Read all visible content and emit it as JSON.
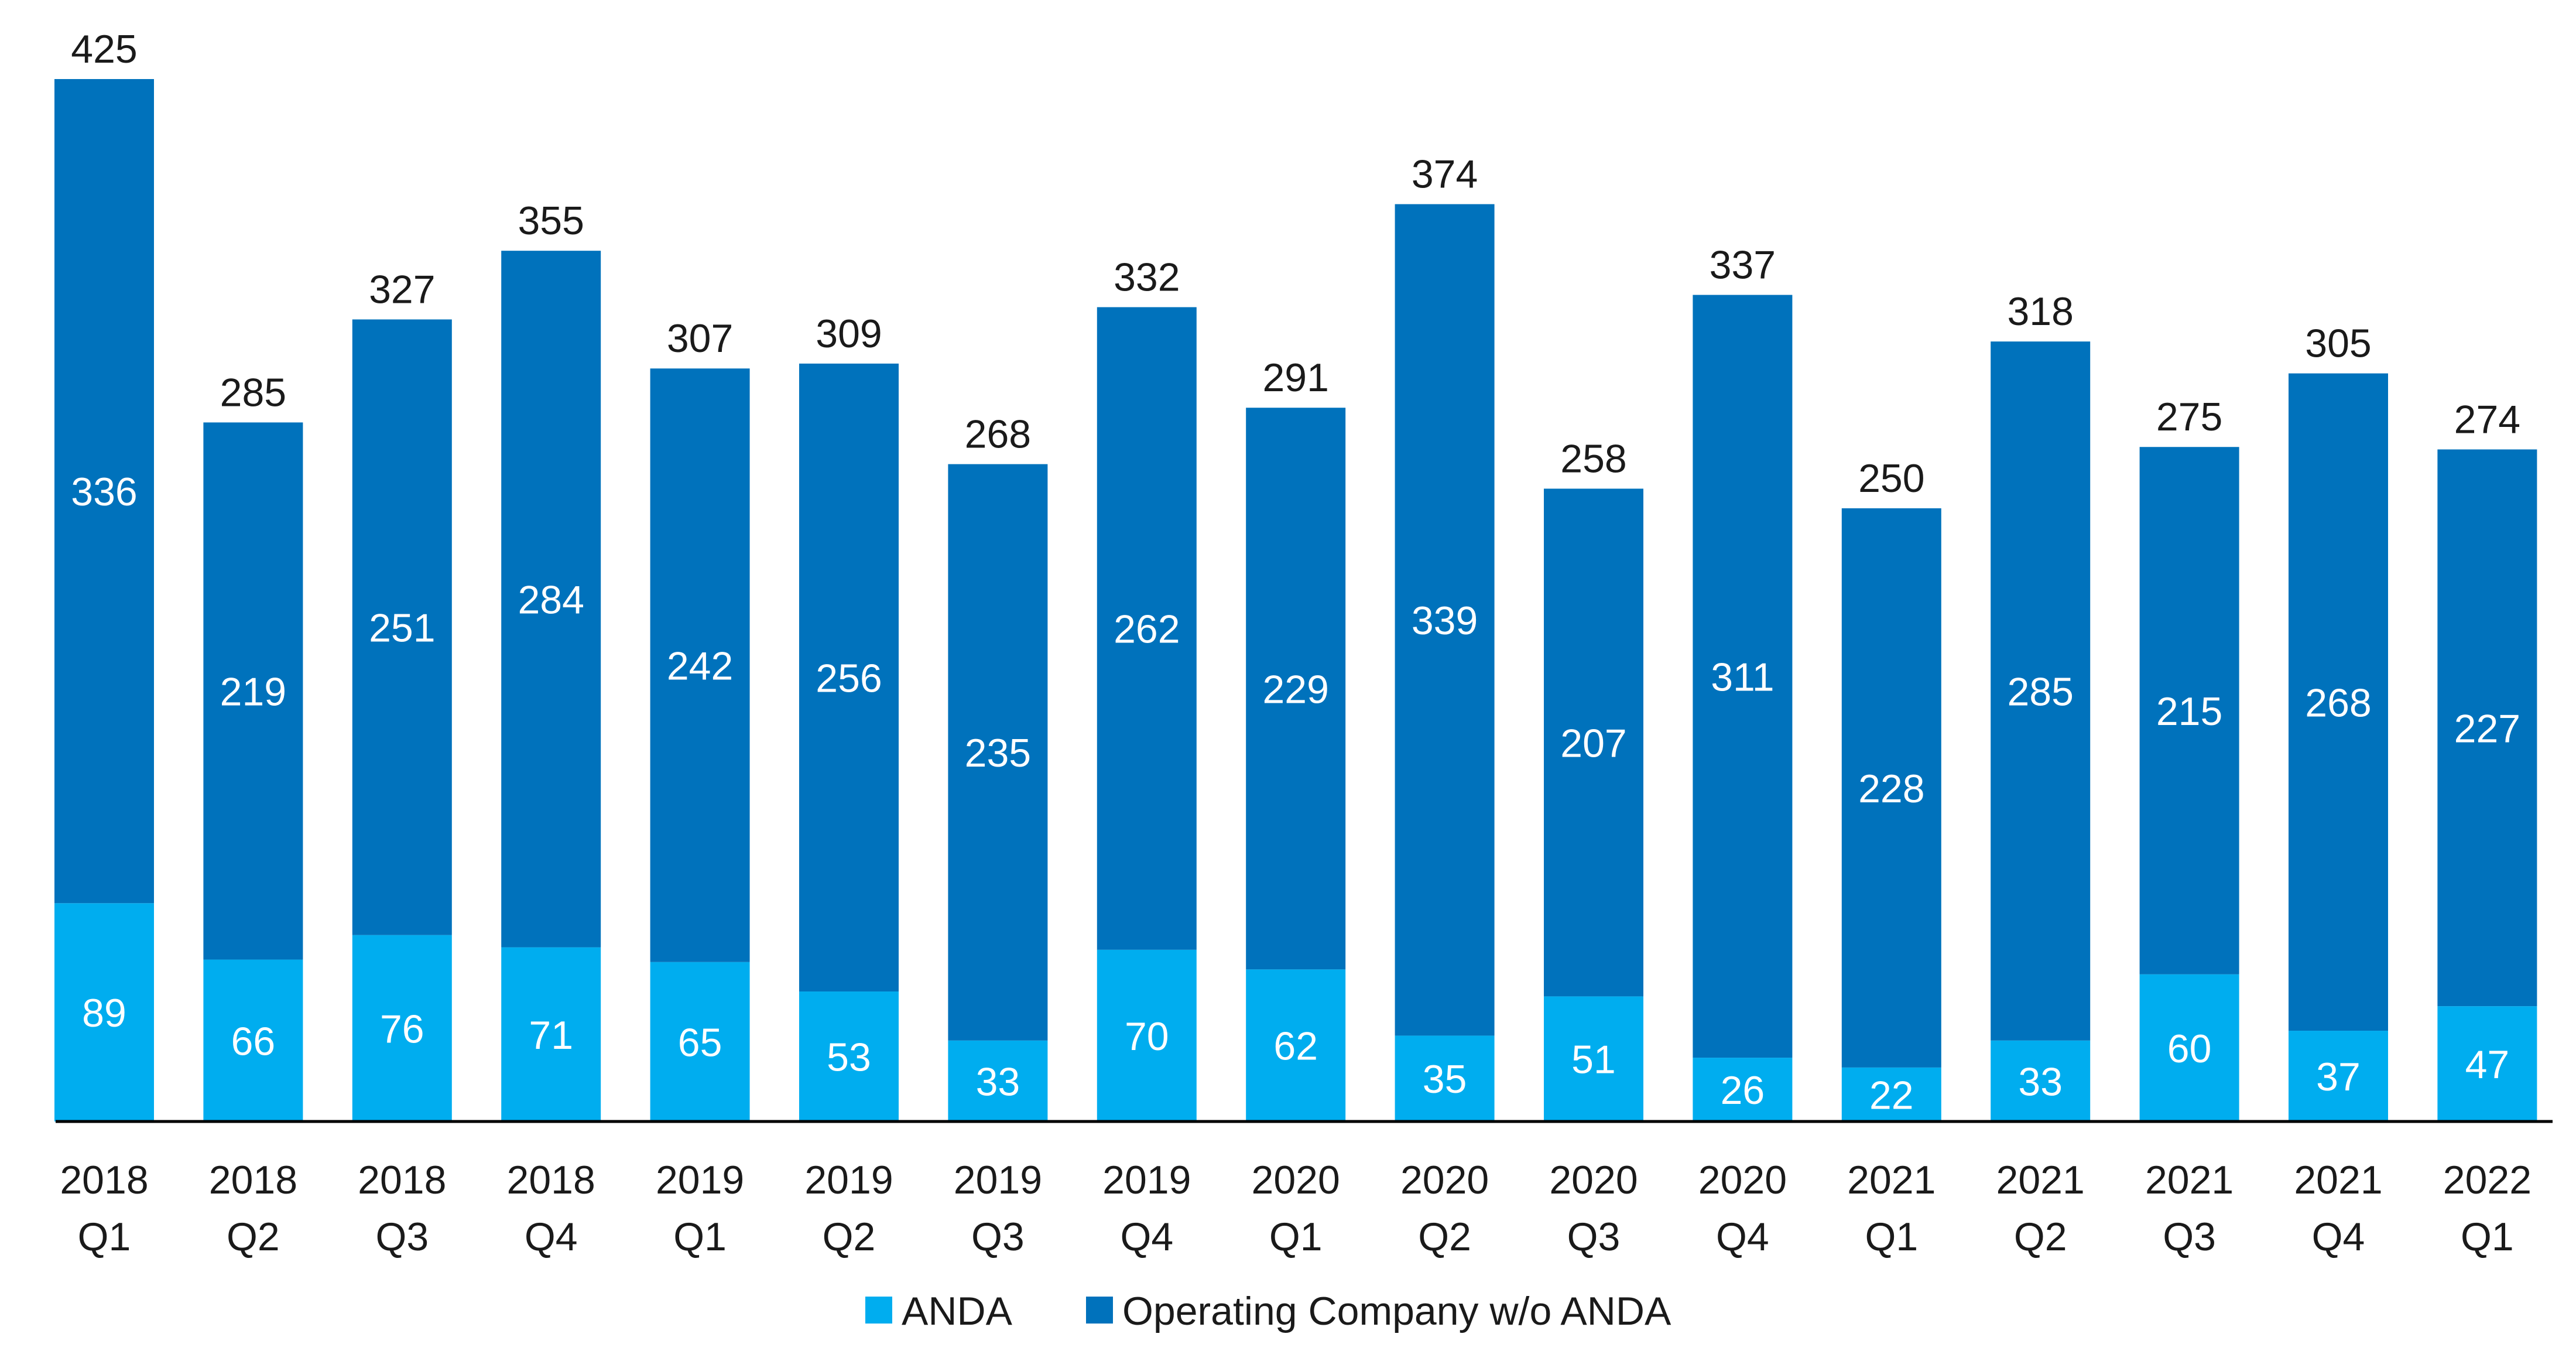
{
  "chart_data": {
    "type": "bar",
    "stacked": true,
    "categories": [
      [
        "2018",
        "Q1"
      ],
      [
        "2018",
        "Q2"
      ],
      [
        "2018",
        "Q3"
      ],
      [
        "2018",
        "Q4"
      ],
      [
        "2019",
        "Q1"
      ],
      [
        "2019",
        "Q2"
      ],
      [
        "2019",
        "Q3"
      ],
      [
        "2019",
        "Q4"
      ],
      [
        "2020",
        "Q1"
      ],
      [
        "2020",
        "Q2"
      ],
      [
        "2020",
        "Q3"
      ],
      [
        "2020",
        "Q4"
      ],
      [
        "2021",
        "Q1"
      ],
      [
        "2021",
        "Q2"
      ],
      [
        "2021",
        "Q3"
      ],
      [
        "2021",
        "Q4"
      ],
      [
        "2022",
        "Q1"
      ]
    ],
    "series": [
      {
        "name": "ANDA",
        "color": "#00adef",
        "values": [
          89,
          66,
          76,
          71,
          65,
          53,
          33,
          70,
          62,
          35,
          51,
          26,
          22,
          33,
          60,
          37,
          47
        ]
      },
      {
        "name": "Operating Company w/o ANDA",
        "color": "#0072bc",
        "values": [
          336,
          219,
          251,
          284,
          242,
          256,
          235,
          262,
          229,
          339,
          207,
          311,
          228,
          285,
          215,
          268,
          227
        ]
      }
    ],
    "totals": [
      425,
      285,
      327,
      355,
      307,
      309,
      268,
      332,
      291,
      374,
      258,
      337,
      250,
      318,
      275,
      305,
      274
    ],
    "ylim": [
      0,
      425
    ],
    "grid": false,
    "legend_position": "bottom-center",
    "segment_label_color": "#ffffff",
    "total_label_color": "#1a1a1a",
    "axis_color": "#000000"
  }
}
